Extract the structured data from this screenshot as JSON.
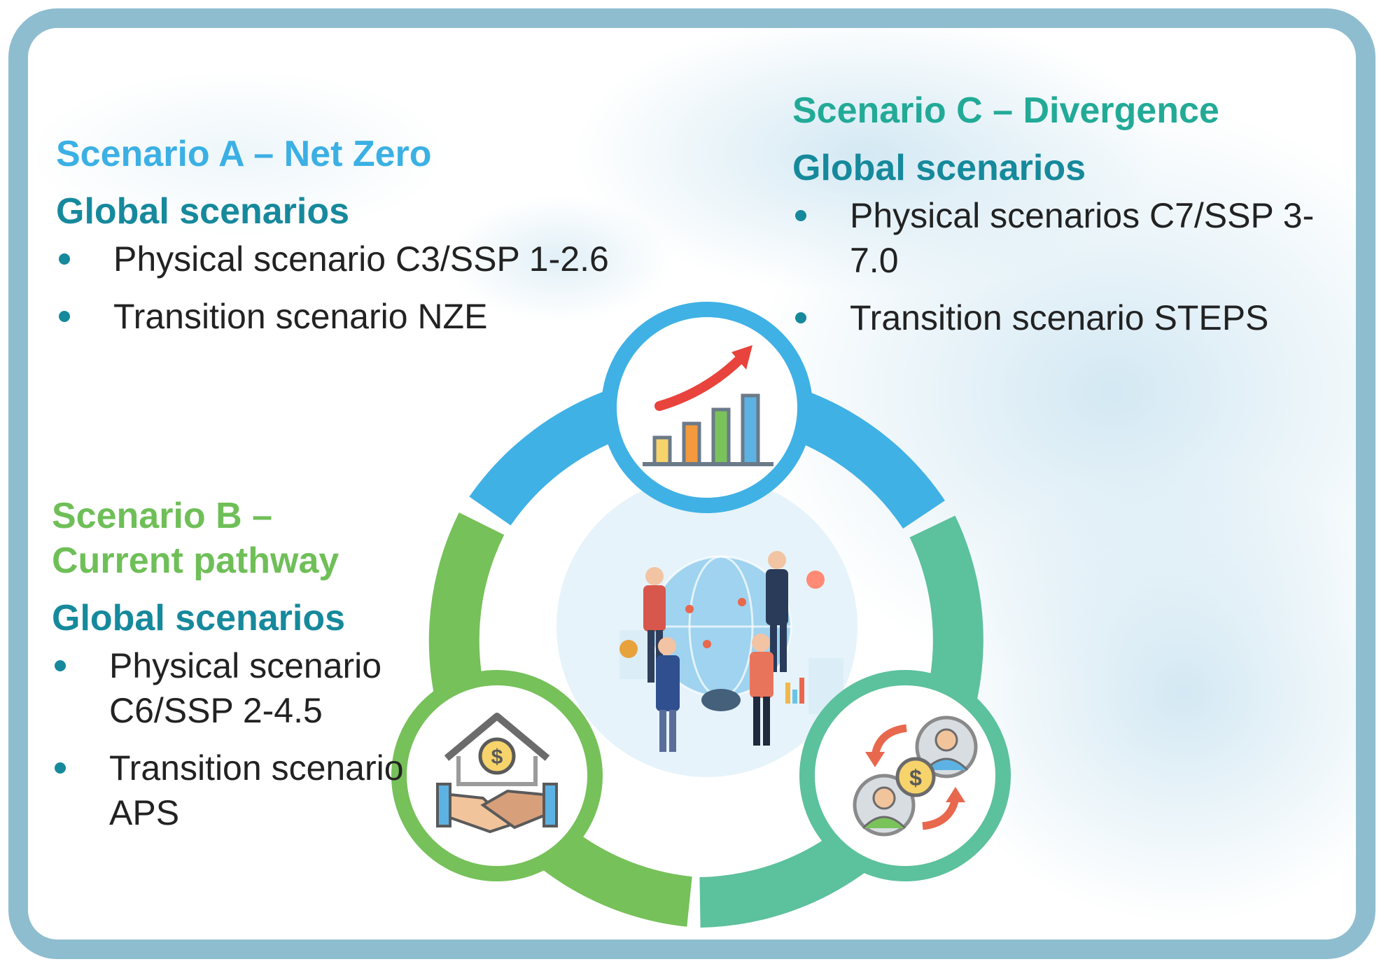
{
  "colors": {
    "frame": "#8fbdd0",
    "scenario_a": "#3bb0e4",
    "scenario_b": "#6fbf58",
    "scenario_c": "#22aa97",
    "global_heading": "#16899c",
    "ring_blue": "#3fb1e5",
    "ring_green": "#76c15a",
    "ring_teal": "#5cc19d"
  },
  "scenario_a": {
    "title": "Scenario A – Net Zero",
    "global": "Global scenarios",
    "items": [
      "Physical scenario C3/SSP 1-2.6",
      "Transition scenario NZE"
    ]
  },
  "scenario_b": {
    "title_line1": "Scenario B –",
    "title_line2": "Current pathway",
    "global": "Global scenarios",
    "items": [
      "Physical scenario C6/SSP 2-4.5",
      "Transition scenario APS"
    ]
  },
  "scenario_c": {
    "title": "Scenario C – Divergence",
    "global": "Global scenarios",
    "items": [
      "Physical scenarios C7/SSP 3-7.0",
      "Transition scenario STEPS"
    ]
  },
  "icons": {
    "top": "growth-chart-icon",
    "left": "handshake-house-money-icon",
    "right": "money-exchange-people-icon",
    "center": "team-globe-illustration"
  }
}
